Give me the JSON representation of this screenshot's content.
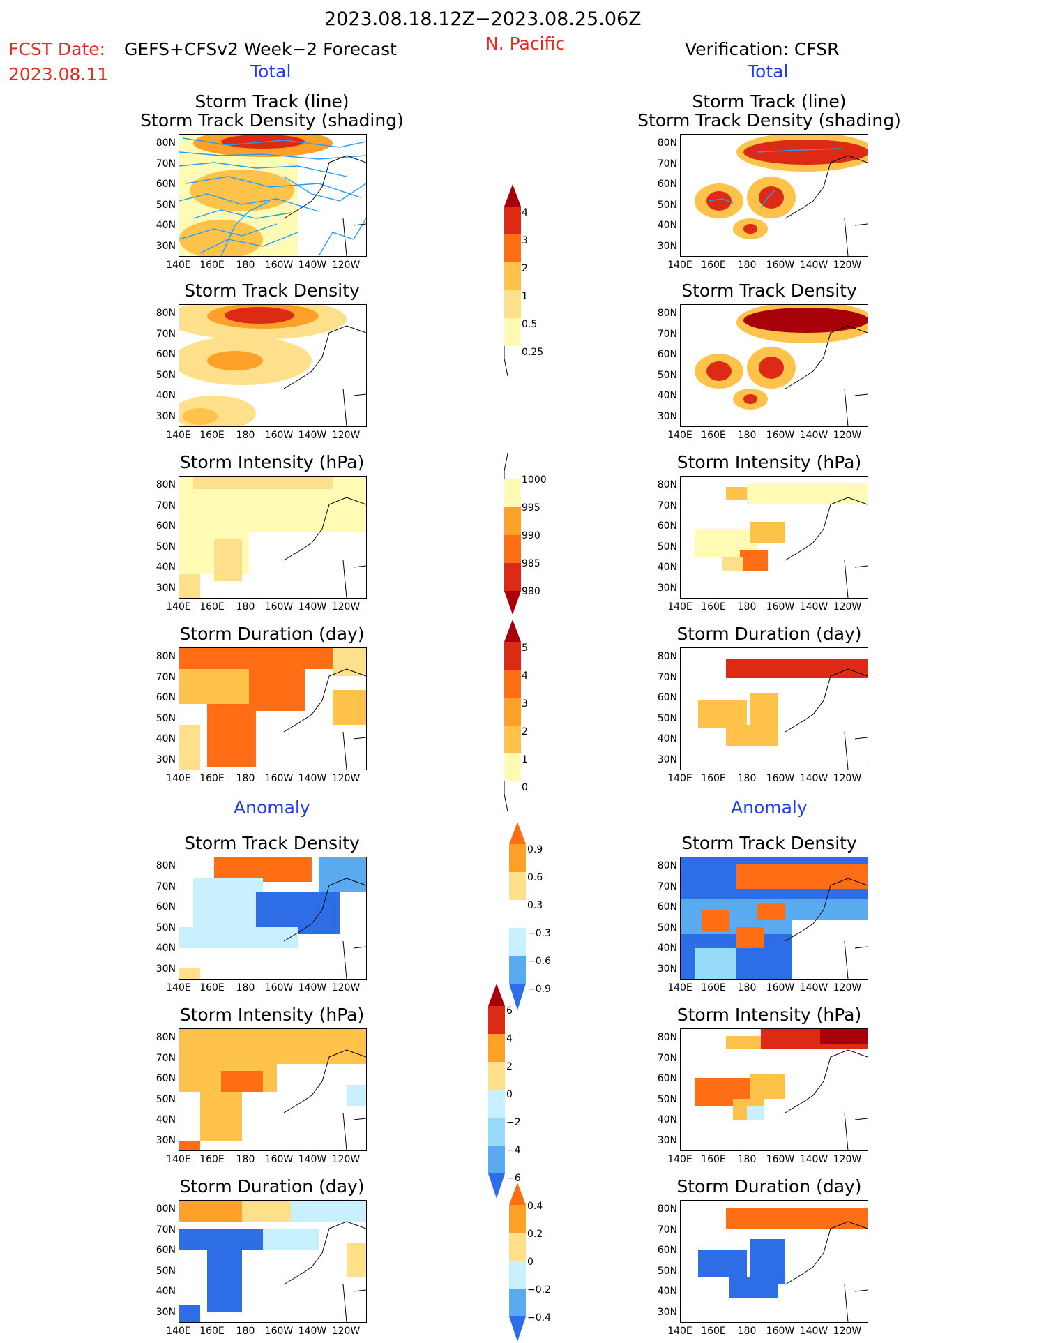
{
  "header": {
    "period": "2023.08.18.12Z−2023.08.25.06Z",
    "region": "N. Pacific",
    "fcst_label": "FCST Date:",
    "fcst_model": "GEFS+CFSv2 Week−2 Forecast",
    "fcst_date": "2023.08.11",
    "verification": "Verification: CFSR",
    "total_left": "Total",
    "total_right": "Total",
    "anomaly_left": "Anomaly",
    "anomaly_right": "Anomaly"
  },
  "panel_titles": {
    "track_line": "Storm Track (line)",
    "track_shading": "Storm Track Density (shading)",
    "density": "Storm Track Density",
    "intensity": "Storm Intensity (hPa)",
    "duration": "Storm Duration (day)"
  },
  "axes": {
    "lat_labels": [
      "80N",
      "70N",
      "60N",
      "50N",
      "40N",
      "30N"
    ],
    "lon_labels": [
      "140E",
      "160E",
      "180",
      "160W",
      "140W",
      "120W"
    ]
  },
  "colorbars": {
    "density_total": [
      "4",
      "3",
      "2",
      "1",
      "0.5",
      "0.25"
    ],
    "intensity_total": [
      "1000",
      "995",
      "990",
      "985",
      "980"
    ],
    "duration_total": [
      "5",
      "4",
      "3",
      "2",
      "1",
      "0"
    ],
    "density_anom": [
      "0.9",
      "0.6",
      "0.3",
      "−0.3",
      "−0.6",
      "−0.9"
    ],
    "intensity_anom": [
      "6",
      "4",
      "2",
      "0",
      "−2",
      "−4",
      "−6"
    ],
    "duration_anom": [
      "0.4",
      "0.2",
      "0",
      "−0.2",
      "−0.4"
    ]
  },
  "colors": {
    "warm": [
      "#fffbb4",
      "#ffe08a",
      "#ffc24a",
      "#ffa028",
      "#ff6e14",
      "#dc2a14",
      "#a8000a"
    ],
    "cold": [
      "#c8f0ff",
      "#96dcf8",
      "#5aaaf0",
      "#2d6ee6",
      "#1e50d2"
    ],
    "track_line": "#1ea0ff",
    "header_red": "#e8281e",
    "header_blue": "#1f3cf0"
  }
}
